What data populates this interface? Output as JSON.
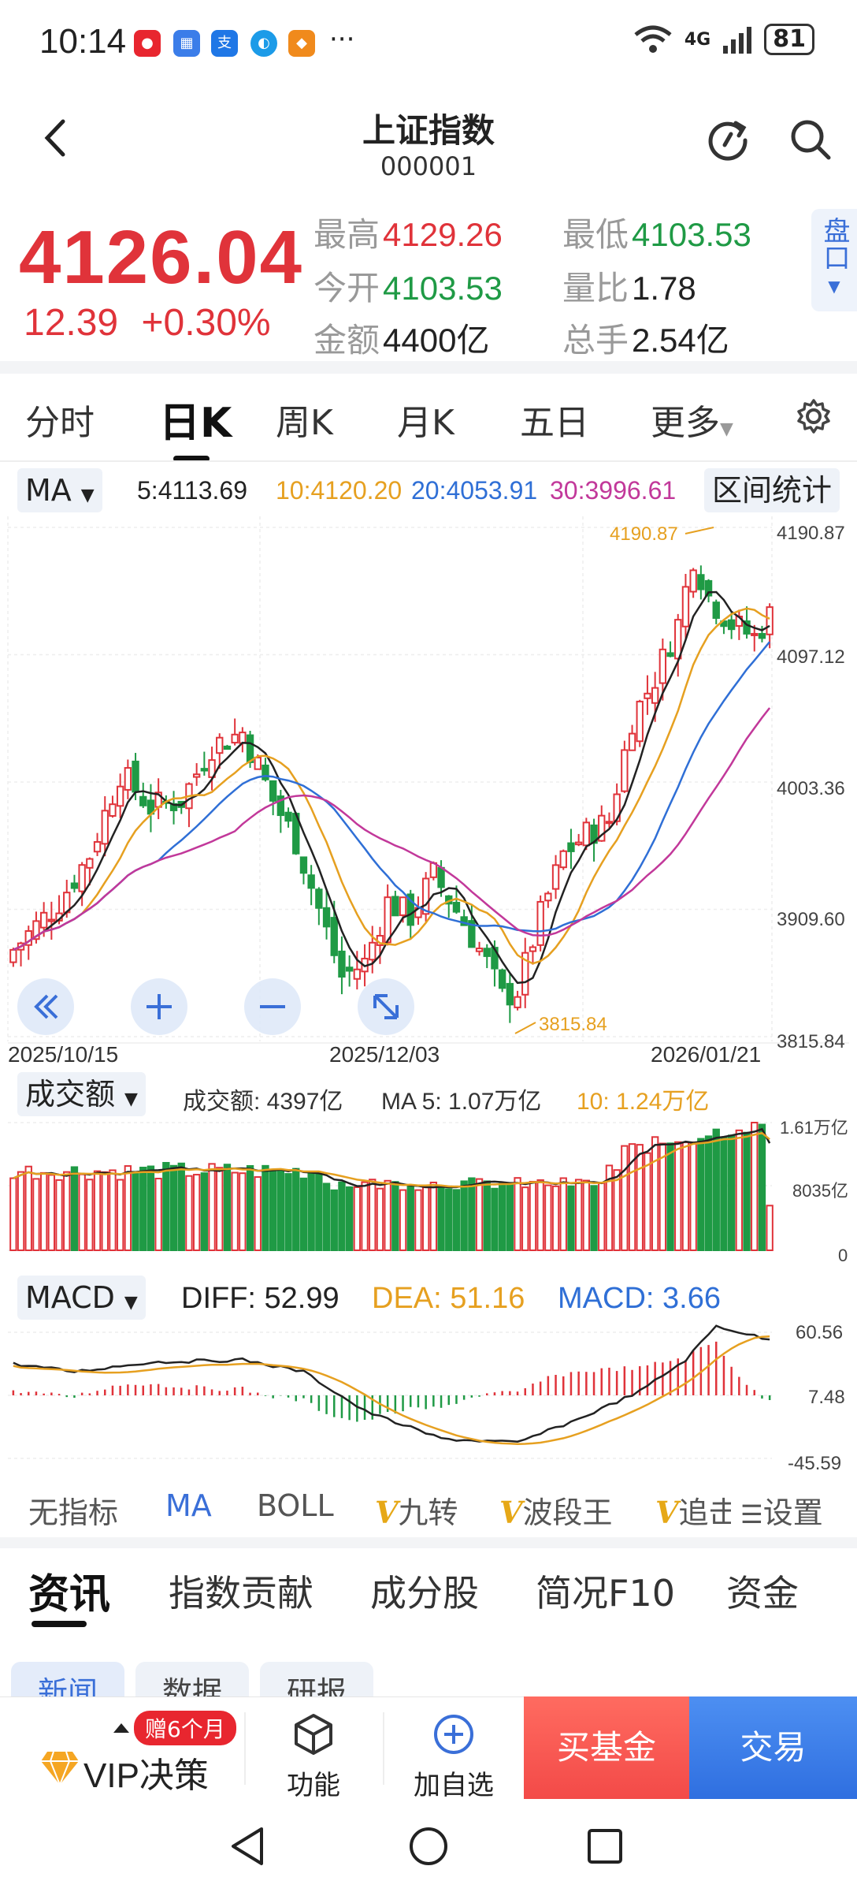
{
  "status_bar": {
    "time": "10:14",
    "network": "4G",
    "battery": "81"
  },
  "header": {
    "title": "上证指数",
    "code": "000001"
  },
  "quote": {
    "price": "4126.04",
    "change": "12.39",
    "change_pct": "+0.30%",
    "stats": [
      {
        "label": "最高",
        "value": "4129.26",
        "tone": "up"
      },
      {
        "label": "最低",
        "value": "4103.53",
        "tone": "down"
      },
      {
        "label": "今开",
        "value": "4103.53",
        "tone": "down"
      },
      {
        "label": "量比",
        "value": "1.78",
        "tone": "neutral"
      },
      {
        "label": "金额",
        "value": "4400亿",
        "tone": "neutral"
      },
      {
        "label": "总手",
        "value": "2.54亿",
        "tone": "neutral"
      }
    ],
    "pankou_label": "盘口"
  },
  "period_tabs": [
    "分时",
    "日K",
    "周K",
    "月K",
    "五日",
    "更多"
  ],
  "active_period": "日K",
  "ma_row": {
    "selector": "MA",
    "ma5": "5:4113.69",
    "ma10": "10:4120.20",
    "ma20": "20:4053.91",
    "ma30": "30:3996.61",
    "range_stats": "区间统计"
  },
  "colors": {
    "up": "#e0333a",
    "down": "#1f9a45",
    "ma5": "#222222",
    "ma10": "#e6a020",
    "ma20": "#2f6fd6",
    "ma30": "#c2389a",
    "accent": "#3a6fd8"
  },
  "price_axis": [
    "4190.87",
    "4097.12",
    "4003.36",
    "3909.60",
    "3815.84"
  ],
  "date_axis": [
    "2025/10/15",
    "2025/12/03",
    "2026/01/21"
  ],
  "annotations": {
    "high": "4190.87",
    "low": "3815.84"
  },
  "volume_row": {
    "selector": "成交额",
    "amount": "成交额: 4397亿",
    "ma5": "MA 5: 1.07万亿",
    "ma10": "10: 1.24万亿",
    "axis": [
      "1.61万亿",
      "8035亿",
      "0"
    ]
  },
  "macd_row": {
    "selector": "MACD",
    "diff": "DIFF: 52.99",
    "dea": "DEA: 51.16",
    "macd": "MACD: 3.66",
    "axis": [
      "60.56",
      "7.48",
      "-45.59"
    ]
  },
  "indicators": {
    "none": "无指标",
    "ma": "MA",
    "boll": "BOLL",
    "jiuzhuan": "九转",
    "boduanwang": "波段王",
    "zhui": "追击",
    "settings": "设置",
    "v_mark": "V"
  },
  "content_tabs": [
    "资讯",
    "指数贡献",
    "成分股",
    "简况F10",
    "资金"
  ],
  "sub_tabs": [
    "新闻",
    "数据",
    "研报"
  ],
  "bottom_bar": {
    "vip_badge": "赠6个月",
    "vip": "VIP决策",
    "function": "功能",
    "add_watch": "加自选",
    "buy_fund": "买基金",
    "trade": "交易"
  }
}
